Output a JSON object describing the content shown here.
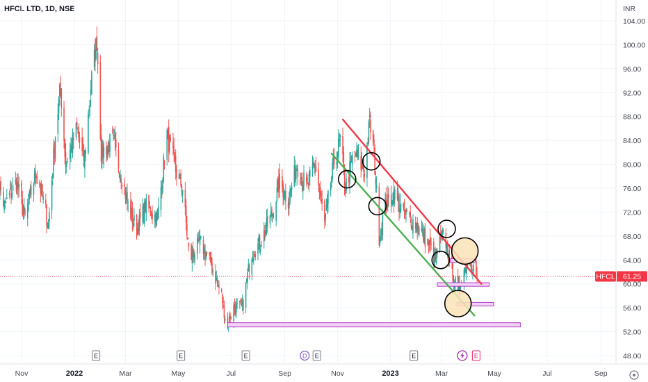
{
  "header": {
    "title": "HFCL LTD, 1D, NSE"
  },
  "colors": {
    "up": "#26a69a",
    "down": "#ef5350",
    "upline": "#26a69a",
    "resistance": "#f23645",
    "support": "#4caf50",
    "zone_fill": "#f3d2f7",
    "zone_stroke": "#b33fc7",
    "circle_fill": "#fbe3b9",
    "price_tag": "#f23645",
    "grid": "#f0f3fa"
  },
  "chart_data": {
    "type": "candlestick",
    "title": "HFCL LTD, 1D, NSE",
    "currency": "INR",
    "ylim": [
      46,
      105
    ],
    "y_ticks": [
      "48.00",
      "52.00",
      "56.00",
      "60.00",
      "64.00",
      "68.00",
      "72.00",
      "76.00",
      "80.00",
      "84.00",
      "88.00",
      "92.00",
      "96.00",
      "100.00",
      "104.00"
    ],
    "x_labels": [
      {
        "label": "Nov",
        "date": "2021-11-01",
        "bold": false
      },
      {
        "label": "2022",
        "date": "2022-01-01",
        "bold": true
      },
      {
        "label": "Mar",
        "date": "2022-03-01",
        "bold": false
      },
      {
        "label": "May",
        "date": "2022-05-01",
        "bold": false
      },
      {
        "label": "Jul",
        "date": "2022-07-01",
        "bold": false
      },
      {
        "label": "Sep",
        "date": "2022-09-01",
        "bold": false
      },
      {
        "label": "Nov",
        "date": "2022-11-01",
        "bold": false
      },
      {
        "label": "2023",
        "date": "2023-01-01",
        "bold": true
      },
      {
        "label": "Mar",
        "date": "2023-03-01",
        "bold": false
      },
      {
        "label": "May",
        "date": "2023-05-01",
        "bold": false
      },
      {
        "label": "Jul",
        "date": "2023-07-01",
        "bold": false
      },
      {
        "label": "Sep",
        "date": "2023-09-01",
        "bold": false
      }
    ],
    "last_price": {
      "symbol": "HFCL",
      "value": 61.25
    },
    "price_path": [
      [
        "2021-10-01",
        80
      ],
      [
        "2021-10-12",
        73
      ],
      [
        "2021-10-26",
        77
      ],
      [
        "2021-11-05",
        71
      ],
      [
        "2021-11-18",
        79
      ],
      [
        "2021-12-02",
        70
      ],
      [
        "2021-12-10",
        85
      ],
      [
        "2021-12-16",
        93
      ],
      [
        "2021-12-22",
        80
      ],
      [
        "2022-01-04",
        86
      ],
      [
        "2022-01-12",
        80
      ],
      [
        "2022-01-20",
        93
      ],
      [
        "2022-01-27",
        101
      ],
      [
        "2022-02-01",
        82
      ],
      [
        "2022-02-14",
        84
      ],
      [
        "2022-02-25",
        78
      ],
      [
        "2022-03-04",
        73
      ],
      [
        "2022-03-14",
        69
      ],
      [
        "2022-03-24",
        73
      ],
      [
        "2022-04-07",
        71
      ],
      [
        "2022-04-18",
        85
      ],
      [
        "2022-04-28",
        79
      ],
      [
        "2022-05-06",
        76
      ],
      [
        "2022-05-14",
        64
      ],
      [
        "2022-05-26",
        67
      ],
      [
        "2022-06-06",
        64
      ],
      [
        "2022-06-20",
        58
      ],
      [
        "2022-06-26",
        53
      ],
      [
        "2022-07-04",
        56
      ],
      [
        "2022-07-14",
        56
      ],
      [
        "2022-07-24",
        65
      ],
      [
        "2022-08-04",
        67
      ],
      [
        "2022-08-18",
        72
      ],
      [
        "2022-08-26",
        77
      ],
      [
        "2022-09-05",
        74
      ],
      [
        "2022-09-15",
        80
      ],
      [
        "2022-09-26",
        76
      ],
      [
        "2022-10-06",
        80
      ],
      [
        "2022-10-17",
        70
      ],
      [
        "2022-10-27",
        80
      ],
      [
        "2022-11-04",
        84
      ],
      [
        "2022-11-10",
        76
      ],
      [
        "2022-11-20",
        82
      ],
      [
        "2022-12-02",
        79
      ],
      [
        "2022-12-08",
        87
      ],
      [
        "2022-12-13",
        82
      ],
      [
        "2022-12-19",
        68
      ],
      [
        "2022-12-26",
        73
      ],
      [
        "2023-01-05",
        75
      ],
      [
        "2023-01-16",
        72
      ],
      [
        "2023-01-30",
        70
      ],
      [
        "2023-02-13",
        67
      ],
      [
        "2023-02-22",
        64
      ],
      [
        "2023-03-01",
        68
      ],
      [
        "2023-03-06",
        67
      ],
      [
        "2023-03-12",
        63
      ],
      [
        "2023-03-20",
        58
      ],
      [
        "2023-03-25",
        62
      ],
      [
        "2023-04-04",
        64
      ],
      [
        "2023-04-11",
        61.25
      ]
    ],
    "trendlines": [
      {
        "name": "resistance",
        "color_key": "resistance",
        "from": [
          "2022-11-07",
          87.5
        ],
        "to": [
          "2023-04-16",
          60
        ]
      },
      {
        "name": "support",
        "color_key": "support",
        "from": [
          "2022-10-25",
          81.8
        ],
        "to": [
          "2023-04-08",
          54.7
        ]
      }
    ],
    "zones": [
      {
        "name": "zone-64",
        "from": "2023-03-11",
        "to": "2023-04-09",
        "low": 63.6,
        "high": 64.2
      },
      {
        "name": "zone-60",
        "from": "2023-02-24",
        "to": "2023-04-25",
        "low": 59.6,
        "high": 60.2
      },
      {
        "name": "zone-56",
        "from": "2023-03-19",
        "to": "2023-04-30",
        "low": 56.3,
        "high": 56.9
      },
      {
        "name": "zone-53",
        "from": "2022-06-27",
        "to": "2023-05-31",
        "low": 52.8,
        "high": 53.5
      }
    ],
    "circles": [
      {
        "date": "2022-11-12",
        "price": 77.5,
        "filled": false
      },
      {
        "date": "2022-12-10",
        "price": 80.5,
        "filled": false
      },
      {
        "date": "2022-12-17",
        "price": 73.0,
        "filled": false
      },
      {
        "date": "2023-02-28",
        "price": 64.0,
        "filled": false
      },
      {
        "date": "2023-03-07",
        "price": 69.2,
        "filled": false
      },
      {
        "date": "2023-03-20",
        "price": 56.7,
        "filled": true
      },
      {
        "date": "2023-03-28",
        "price": 65.5,
        "filled": true
      }
    ],
    "event_markers": [
      {
        "label": "E",
        "date": "2022-01-26",
        "style": "earnings"
      },
      {
        "label": "E",
        "date": "2022-05-04",
        "style": "earnings"
      },
      {
        "label": "E",
        "date": "2022-07-18",
        "style": "earnings"
      },
      {
        "label": "D",
        "date": "2022-09-24",
        "style": "dividend"
      },
      {
        "label": "E",
        "date": "2022-10-08",
        "style": "earnings"
      },
      {
        "label": "E",
        "date": "2023-01-28",
        "style": "earnings"
      },
      {
        "label": "E",
        "date": "2023-04-10",
        "style": "earnings-future"
      }
    ]
  }
}
